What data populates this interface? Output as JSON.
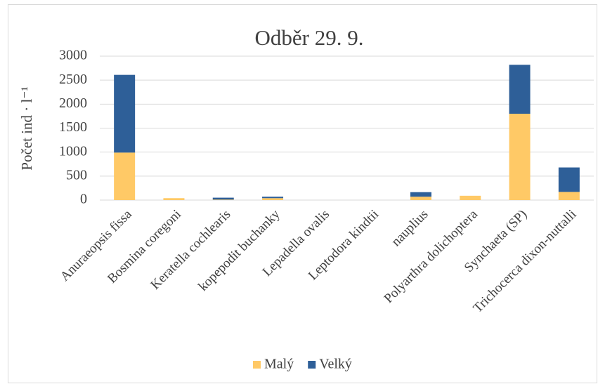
{
  "chart_data": {
    "type": "stacked_bar",
    "title": "Odběr 29. 9.",
    "ylabel": "Počet ind · l⁻¹",
    "categories": [
      "Anuraeopsis fissa",
      "Bosmina coregoni",
      "Keratella cochlearis",
      "kopepodit buchanky",
      "Lepadella ovalis",
      "Leptodora kindtii",
      "nauplius",
      "Polyarthra dolichoptera",
      "Synchaeta (SP)",
      "Trichocerca dixon-nuttalli"
    ],
    "series": [
      {
        "name": "Malý",
        "color": "#ffc966",
        "values": [
          990,
          40,
          10,
          40,
          0,
          0,
          70,
          90,
          1800,
          170
        ]
      },
      {
        "name": "Velký",
        "color": "#2e5f98",
        "values": [
          1620,
          0,
          40,
          30,
          0,
          0,
          95,
          0,
          1020,
          510
        ]
      }
    ],
    "ylim": [
      0,
      3000
    ],
    "yticks": [
      0,
      500,
      1000,
      1500,
      2000,
      2500,
      3000
    ],
    "grid": true,
    "legend": "bottom"
  }
}
